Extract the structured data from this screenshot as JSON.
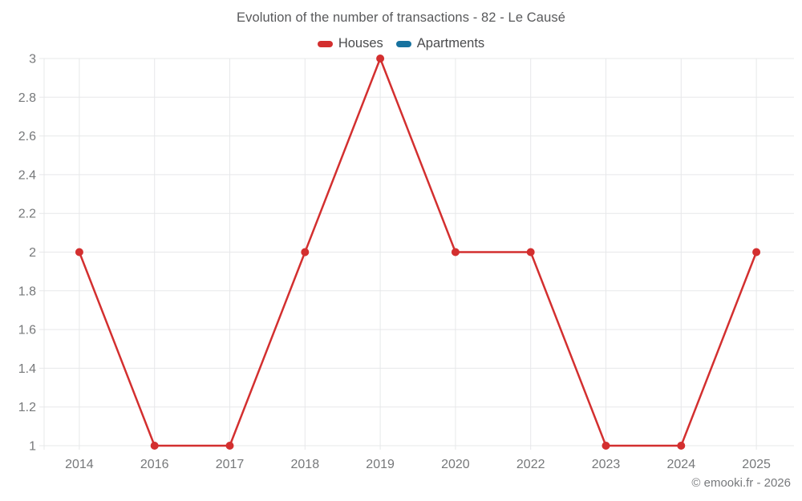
{
  "chart_data": {
    "type": "line",
    "title": "Evolution of the number of transactions - 82 - Le Causé",
    "categories": [
      "2014",
      "2016",
      "2017",
      "2018",
      "2019",
      "2020",
      "2022",
      "2023",
      "2024",
      "2025"
    ],
    "series": [
      {
        "name": "Houses",
        "color": "#d32f2f",
        "values": [
          2,
          1,
          1,
          2,
          3,
          2,
          2,
          1,
          1,
          2
        ]
      },
      {
        "name": "Apartments",
        "color": "#17729f",
        "values": []
      }
    ],
    "xlabel": "",
    "ylabel": "",
    "ylim": [
      1,
      3
    ],
    "yticks": [
      1,
      1.2,
      1.4,
      1.6,
      1.8,
      2,
      2.2,
      2.4,
      2.6,
      2.8,
      3
    ],
    "grid": true,
    "legend_position": "top",
    "marker": "circle"
  },
  "colors": {
    "houses": "#d32f2f",
    "apartments": "#17729f",
    "gridline": "#e7e8ea",
    "tick_label": "#76787a",
    "title_text": "#58595b"
  },
  "footer": {
    "text": "© emooki.fr - 2026"
  }
}
